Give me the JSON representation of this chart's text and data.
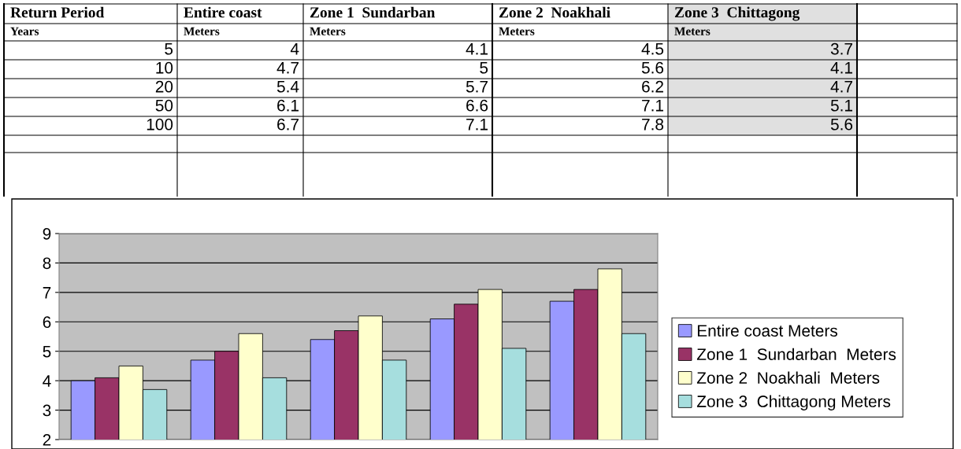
{
  "chart_data": [
    {
      "type": "other",
      "annotations": [
        "Return Period",
        "Entire coast",
        "Zone 1  Sundarban",
        "Zone 2  Noakhali",
        "Zone 3  Chittagong",
        "Years",
        "Meters",
        "Meters",
        "Meters",
        "Meters",
        "5",
        "4",
        "4.1",
        "4.5",
        "3.7",
        "10",
        "4.7",
        "5",
        "5.6",
        "4.1",
        "20",
        "5.4",
        "5.7",
        "6.2",
        "4.7",
        "50",
        "6.1",
        "6.6",
        "7.1",
        "5.1",
        "100",
        "6.7",
        "7.1",
        "7.8",
        "5.6"
      ]
    },
    {
      "type": "bar",
      "categories": [
        null,
        null,
        null,
        null,
        null
      ],
      "series": [
        {
          "name": "Entire coast Meters",
          "color": "#9999ff",
          "values": [
            4,
            4.7,
            5.4,
            6.1,
            6.7
          ]
        },
        {
          "name": "Zone 1  Sundarban  Meters",
          "color": "#993366",
          "values": [
            4.1,
            5,
            5.7,
            6.6,
            7.1
          ]
        },
        {
          "name": "Zone 2  Noakhali  Meters",
          "color": "#ffffcc",
          "values": [
            4.5,
            5.6,
            6.2,
            7.1,
            7.8
          ]
        },
        {
          "name": "Zone 3  Chittagong Meters",
          "color": "#a6dede",
          "values": [
            3.7,
            4.1,
            4.7,
            5.1,
            5.6
          ]
        }
      ],
      "ylim": [
        2,
        9
      ],
      "yticks": [
        2,
        3,
        4,
        5,
        6,
        7,
        8,
        9
      ],
      "grid": "y",
      "legend": "right"
    }
  ]
}
